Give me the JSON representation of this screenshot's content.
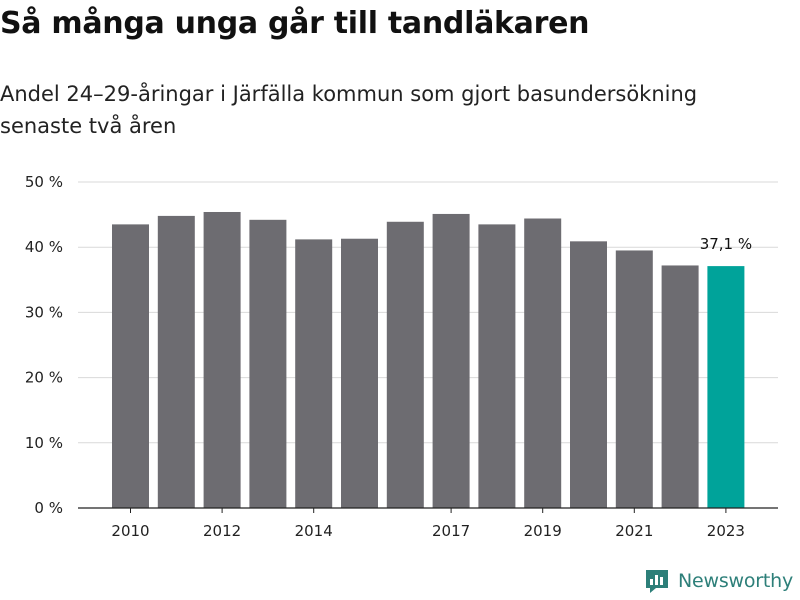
{
  "title": "Så många unga går till tandläkaren",
  "subtitle": "Andel 24–29-åringar i Järfälla kommun som gjort basundersökning senaste två åren",
  "brand": "Newsworthy",
  "colors": {
    "bar": "#6d6c71",
    "highlight": "#00a39a",
    "grid": "#d9d9d9",
    "brand": "#2d7f79"
  },
  "chart_data": {
    "type": "bar",
    "categories": [
      "2010",
      "2011",
      "2012",
      "2013",
      "2014",
      "2015",
      "2016",
      "2017",
      "2018",
      "2019",
      "2020",
      "2021",
      "2022",
      "2023"
    ],
    "values": [
      43.5,
      44.8,
      45.4,
      44.2,
      41.2,
      41.3,
      43.9,
      45.1,
      43.5,
      44.4,
      40.9,
      39.5,
      37.2,
      37.1
    ],
    "highlight_index": 13,
    "highlight_label": "37,1 %",
    "ylim": [
      0,
      50
    ],
    "y_ticks": [
      0,
      10,
      20,
      30,
      40,
      50
    ],
    "y_tick_labels": [
      "0 %",
      "10 %",
      "20 %",
      "30 %",
      "40 %",
      "50 %"
    ],
    "x_tick_labels": [
      "2010",
      "2012",
      "2014",
      "2017",
      "2019",
      "2021",
      "2023"
    ],
    "grid": true
  }
}
